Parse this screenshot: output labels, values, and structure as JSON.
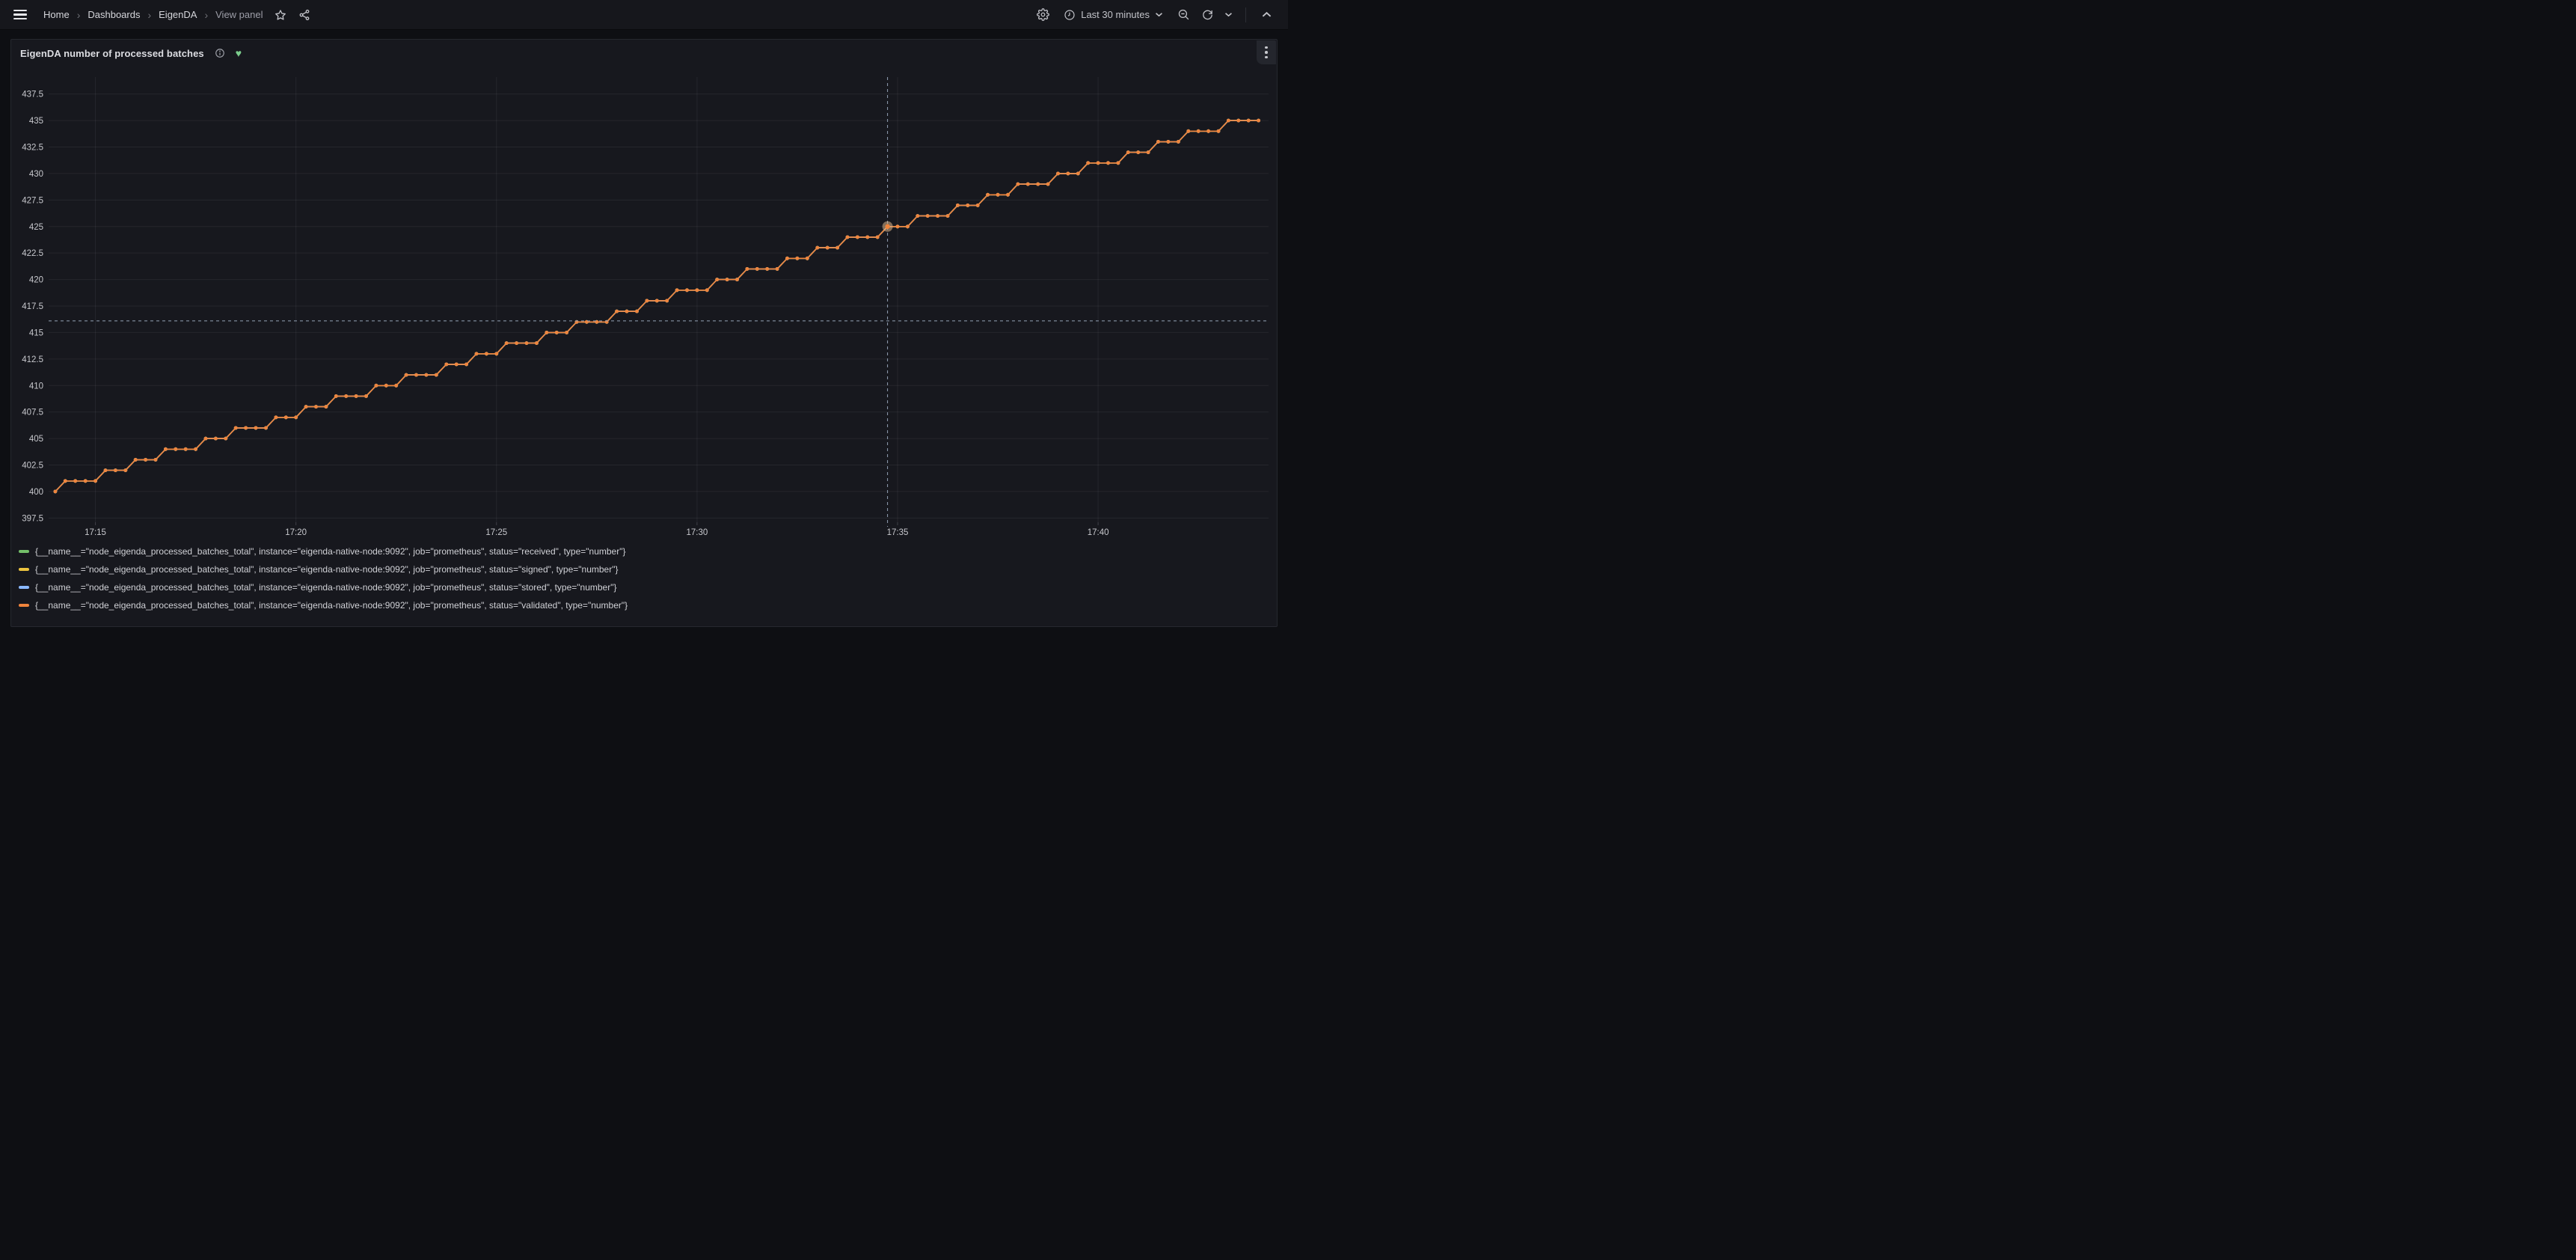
{
  "nav": {
    "breadcrumbs": [
      {
        "label": "Home"
      },
      {
        "label": "Dashboards"
      },
      {
        "label": "EigenDA"
      },
      {
        "label": "View panel"
      }
    ],
    "time_range_label": "Last 30 minutes"
  },
  "panel": {
    "title": "EigenDA number of processed batches"
  },
  "chart_data": {
    "type": "line",
    "title": "EigenDA number of processed batches",
    "x_axis": {
      "tick_labels": [
        "17:15",
        "17:20",
        "17:25",
        "17:30",
        "17:35",
        "17:40"
      ],
      "domain": [
        "17:13:50",
        "17:44:15"
      ]
    },
    "y_axis": {
      "tick_labels": [
        397.5,
        400,
        402.5,
        405,
        407.5,
        410,
        412.5,
        415,
        417.5,
        420,
        422.5,
        425,
        427.5,
        430,
        432.5,
        435,
        437.5
      ],
      "domain": [
        397.1,
        439.1
      ]
    },
    "grid": true,
    "legend_position": "bottom",
    "sampling": {
      "start": "17:14:00",
      "interval_seconds": 15
    },
    "overlap_note": "All four series have identical values; the orange 'validated' series is drawn on top and hides the others.",
    "series": [
      {
        "name": "received",
        "color": "#73BF69",
        "label": "{__name__=\"node_eigenda_processed_batches_total\", instance=\"eigenda-native-node:9092\", job=\"prometheus\", status=\"received\", type=\"number\"}",
        "values_ref": "shared_values"
      },
      {
        "name": "signed",
        "color": "#ECC33F",
        "label": "{__name__=\"node_eigenda_processed_batches_total\", instance=\"eigenda-native-node:9092\", job=\"prometheus\", status=\"signed\", type=\"number\"}",
        "values_ref": "shared_values"
      },
      {
        "name": "stored",
        "color": "#8AB8FF",
        "label": "{__name__=\"node_eigenda_processed_batches_total\", instance=\"eigenda-native-node:9092\", job=\"prometheus\", status=\"stored\", type=\"number\"}",
        "values_ref": "shared_values"
      },
      {
        "name": "validated",
        "color": "#EF843C",
        "label": "{__name__=\"node_eigenda_processed_batches_total\", instance=\"eigenda-native-node:9092\", job=\"prometheus\", status=\"validated\", type=\"number\"}",
        "values_ref": "shared_values"
      }
    ],
    "shared_values": [
      400,
      401,
      401,
      401,
      401,
      402,
      402,
      402,
      403,
      403,
      403,
      404,
      404,
      404,
      404,
      405,
      405,
      405,
      406,
      406,
      406,
      406,
      407,
      407,
      407,
      408,
      408,
      408,
      409,
      409,
      409,
      409,
      410,
      410,
      410,
      411,
      411,
      411,
      411,
      412,
      412,
      412,
      413,
      413,
      413,
      414,
      414,
      414,
      414,
      415,
      415,
      415,
      416,
      416,
      416,
      416,
      417,
      417,
      417,
      418,
      418,
      418,
      419,
      419,
      419,
      419,
      420,
      420,
      420,
      421,
      421,
      421,
      421,
      422,
      422,
      422,
      423,
      423,
      423,
      424,
      424,
      424,
      424,
      425,
      425,
      425,
      426,
      426,
      426,
      426,
      427,
      427,
      427,
      428,
      428,
      428,
      429,
      429,
      429,
      429,
      430,
      430,
      430,
      431,
      431,
      431,
      431,
      432,
      432,
      432,
      433,
      433,
      433,
      434,
      434,
      434,
      434,
      435,
      435,
      435,
      435
    ],
    "crosshair": {
      "time": "17:34:45",
      "y_value": 416.1,
      "highlighted_point": {
        "series": "validated",
        "time": "17:34:45",
        "value": 425
      }
    },
    "colors": {
      "grid": "rgba(204,204,220,0.08)",
      "tick_text": "#c7c8cd",
      "crosshair": "#93a1b5",
      "highlight_halo": "rgba(219,182,140,0.55)"
    }
  }
}
